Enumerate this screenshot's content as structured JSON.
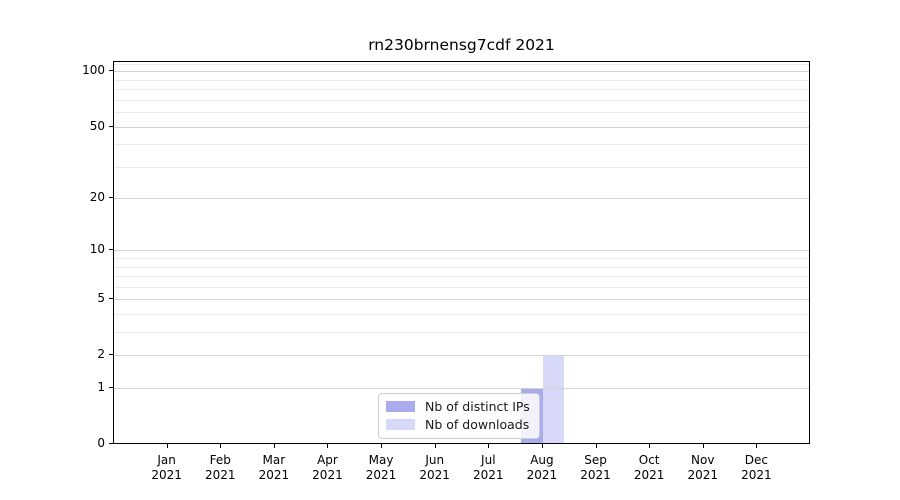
{
  "chart_data": {
    "type": "bar",
    "title": "rn230brnensg7cdf 2021",
    "categories": [
      "Jan 2021",
      "Feb 2021",
      "Mar 2021",
      "Apr 2021",
      "May 2021",
      "Jun 2021",
      "Jul 2021",
      "Aug 2021",
      "Sep 2021",
      "Oct 2021",
      "Nov 2021",
      "Dec 2021"
    ],
    "series": [
      {
        "name": "Nb of distinct IPs",
        "color": "#aaaaee",
        "values": [
          0,
          0,
          0,
          0,
          0,
          0,
          0,
          1,
          0,
          0,
          0,
          0
        ]
      },
      {
        "name": "Nb of downloads",
        "color": "#d8d8f8",
        "values": [
          0,
          0,
          0,
          0,
          0,
          0,
          0,
          2,
          0,
          0,
          0,
          0
        ]
      }
    ],
    "xlabel": "",
    "ylabel": "",
    "yscale": "log1p",
    "y_major_ticks": [
      0,
      1,
      2,
      5,
      10,
      20,
      50,
      100
    ],
    "y_minor_ticks": [
      3,
      4,
      6,
      7,
      8,
      9,
      30,
      40,
      60,
      70,
      80,
      90,
      110
    ],
    "ylim": [
      0,
      113
    ],
    "grid": "horizontal-only",
    "legend_position": "lower-center-inside"
  },
  "colors": {
    "axis": "#000000",
    "grid_major": "#d2d2d2",
    "grid_minor": "#ececec",
    "legend_border": "#cccccc",
    "background": "#ffffff"
  }
}
